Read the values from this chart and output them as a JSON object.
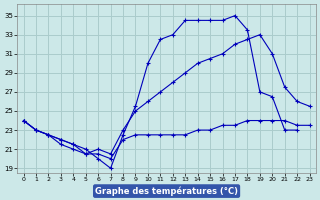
{
  "title": "Graphe des températures (°C)",
  "background_color": "#cce8e8",
  "grid_color": "#aacccc",
  "line_color": "#0000bb",
  "xlim": [
    -0.5,
    23.5
  ],
  "ylim": [
    18.5,
    36.2
  ],
  "xticks": [
    0,
    1,
    2,
    3,
    4,
    5,
    6,
    7,
    8,
    9,
    10,
    11,
    12,
    13,
    14,
    15,
    16,
    17,
    18,
    19,
    20,
    21,
    22,
    23
  ],
  "yticks": [
    19,
    21,
    23,
    25,
    27,
    29,
    31,
    33,
    35
  ],
  "line1_x": [
    0,
    1,
    2,
    3,
    4,
    5,
    6,
    7,
    8,
    9,
    10,
    11,
    12,
    13,
    14,
    15,
    16,
    17,
    18,
    19,
    20,
    21,
    22
  ],
  "line1_y": [
    24.0,
    23.0,
    22.5,
    22.0,
    21.5,
    21.0,
    20.0,
    19.0,
    22.5,
    25.5,
    30.0,
    32.5,
    33.0,
    34.5,
    34.5,
    34.5,
    34.5,
    35.0,
    33.5,
    27.0,
    26.5,
    23.0,
    23.0
  ],
  "line2_x": [
    0,
    1,
    2,
    3,
    4,
    5,
    6,
    7,
    8,
    9,
    10,
    11,
    12,
    13,
    14,
    15,
    16,
    17,
    18,
    19,
    20,
    21,
    22,
    23
  ],
  "line2_y": [
    24.0,
    23.0,
    22.5,
    21.5,
    21.0,
    20.5,
    21.0,
    20.5,
    23.0,
    25.0,
    26.0,
    27.0,
    28.0,
    29.0,
    30.0,
    30.5,
    31.0,
    32.0,
    32.5,
    33.0,
    31.0,
    27.5,
    26.0,
    25.5
  ],
  "line3_x": [
    0,
    1,
    2,
    3,
    4,
    5,
    6,
    7,
    8,
    9,
    10,
    11,
    12,
    13,
    14,
    15,
    16,
    17,
    18,
    19,
    20,
    21,
    22,
    23
  ],
  "line3_y": [
    24.0,
    23.0,
    22.5,
    22.0,
    21.5,
    20.5,
    20.5,
    20.0,
    22.0,
    22.5,
    22.5,
    22.5,
    22.5,
    22.5,
    23.0,
    23.0,
    23.5,
    23.5,
    24.0,
    24.0,
    24.0,
    24.0,
    23.5,
    23.5
  ],
  "xlabel_bg": "#3355aa",
  "xlabel_color": "white",
  "xlabel_fontsize": 6.0
}
